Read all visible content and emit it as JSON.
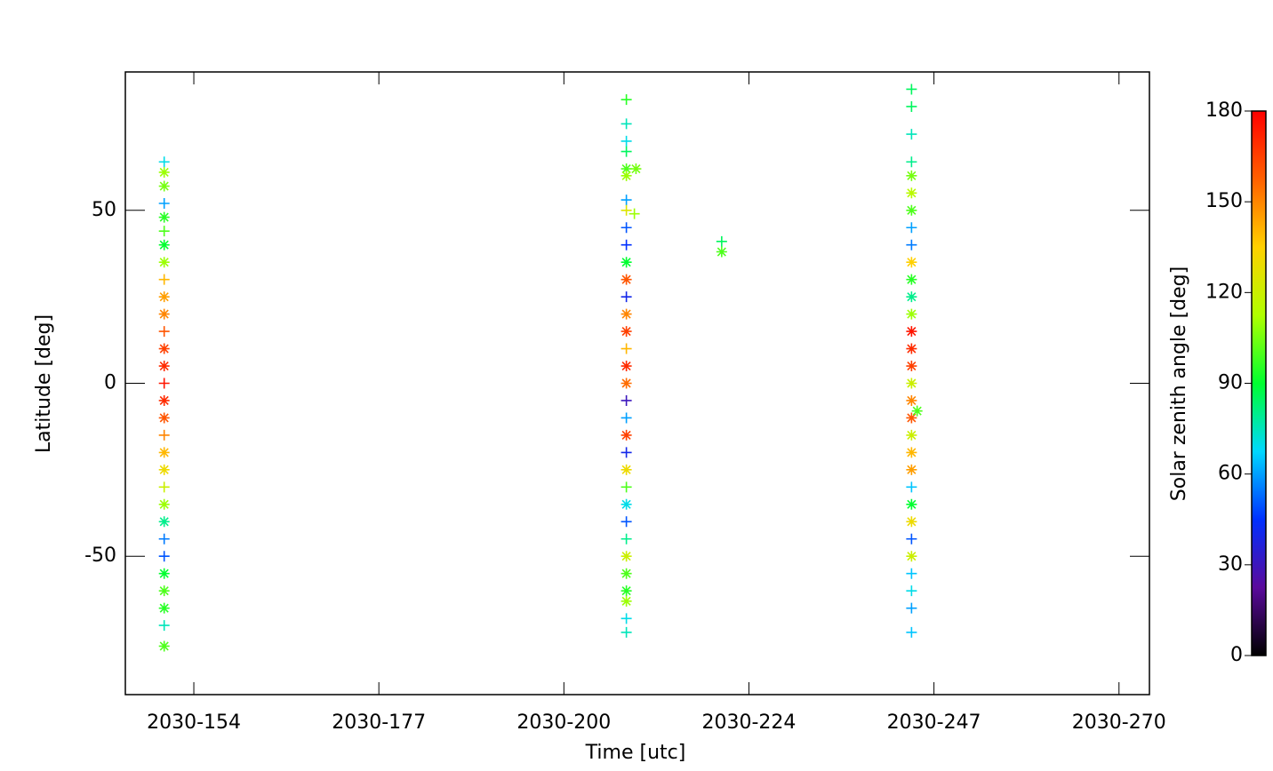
{
  "chart_data": {
    "type": "scatter",
    "xlabel": "Time [utc]",
    "ylabel": "Latitude [deg]",
    "clabel": "Solar zenith angle [deg]",
    "xlim": [
      145.75,
      273.6
    ],
    "ylim": [
      -90,
      90
    ],
    "xticks": [
      {
        "value": 154.3,
        "label": "2030-154"
      },
      {
        "value": 177.4,
        "label": "2030-177"
      },
      {
        "value": 200.5,
        "label": "2030-200"
      },
      {
        "value": 223.6,
        "label": "2030-224"
      },
      {
        "value": 246.7,
        "label": "2030-247"
      },
      {
        "value": 269.8,
        "label": "2030-270"
      }
    ],
    "yticks": [
      -50,
      0,
      50
    ],
    "clim": [
      0,
      180
    ],
    "cticks": [
      0,
      30,
      60,
      90,
      120,
      150,
      180
    ],
    "colormap": [
      "#000000",
      "#5a0a9c",
      "#0030ff",
      "#00d8ff",
      "#00ff30",
      "#b0ff00",
      "#ffd000",
      "#ff6000",
      "#ff0000"
    ],
    "points": {
      "x": [
        150.6,
        150.6,
        150.6,
        150.6,
        150.6,
        150.6,
        150.6,
        150.6,
        150.6,
        150.6,
        150.6,
        150.6,
        150.6,
        150.6,
        150.6,
        150.6,
        150.6,
        150.6,
        150.6,
        150.6,
        150.6,
        150.6,
        150.6,
        150.6,
        150.6,
        150.6,
        150.6,
        150.6,
        150.6,
        150.6,
        208.3,
        208.3,
        208.3,
        208.3,
        208.3,
        208.3,
        208.3,
        208.3,
        208.3,
        208.3,
        208.3,
        208.3,
        208.3,
        208.3,
        208.3,
        208.3,
        208.3,
        208.3,
        208.3,
        208.3,
        208.3,
        208.3,
        208.3,
        208.3,
        208.3,
        208.3,
        208.3,
        208.3,
        208.3,
        208.3,
        208.3,
        208.3,
        208.3,
        209.5,
        209.3,
        220.2,
        220.2,
        243.9,
        243.9,
        243.9,
        243.9,
        243.9,
        243.9,
        243.9,
        243.9,
        243.9,
        243.9,
        243.9,
        243.9,
        243.9,
        243.9,
        243.9,
        243.9,
        243.9,
        243.9,
        243.9,
        243.9,
        243.9,
        243.9,
        243.9,
        243.9,
        243.9,
        243.9,
        243.9,
        243.9,
        243.9,
        243.9,
        243.9,
        244.6
      ],
      "y": [
        64,
        61,
        57,
        52,
        48,
        44,
        40,
        35,
        30,
        25,
        20,
        15,
        10,
        5,
        0,
        -5,
        -10,
        -15,
        -20,
        -25,
        -30,
        -35,
        -40,
        -45,
        -50,
        -55,
        -60,
        -65,
        -70,
        -76,
        82,
        75,
        70,
        67,
        62,
        60,
        53,
        50,
        45,
        40,
        35,
        30,
        25,
        20,
        15,
        10,
        5,
        0,
        -5,
        -10,
        -15,
        -20,
        -25,
        -30,
        -35,
        -40,
        -45,
        -50,
        -55,
        -60,
        -63,
        -68,
        -72,
        62,
        49,
        41,
        38,
        85,
        80,
        72,
        64,
        60,
        55,
        50,
        45,
        40,
        35,
        30,
        25,
        20,
        15,
        10,
        5,
        0,
        -5,
        -10,
        -15,
        -20,
        -25,
        -30,
        -35,
        -40,
        -45,
        -50,
        -55,
        -60,
        -65,
        -72,
        -8
      ],
      "c": [
        70,
        110,
        105,
        60,
        95,
        100,
        90,
        110,
        140,
        145,
        150,
        160,
        165,
        170,
        175,
        170,
        160,
        150,
        140,
        130,
        120,
        110,
        80,
        55,
        50,
        90,
        100,
        95,
        75,
        100,
        95,
        75,
        70,
        85,
        100,
        110,
        60,
        125,
        50,
        45,
        90,
        160,
        40,
        150,
        165,
        140,
        170,
        155,
        30,
        60,
        165,
        40,
        130,
        100,
        70,
        50,
        80,
        120,
        100,
        95,
        110,
        70,
        75,
        105,
        110,
        85,
        100,
        85,
        85,
        75,
        80,
        105,
        115,
        100,
        60,
        55,
        135,
        95,
        80,
        110,
        175,
        170,
        165,
        120,
        150,
        160,
        120,
        140,
        145,
        65,
        90,
        130,
        50,
        120,
        65,
        70,
        60,
        65,
        100
      ],
      "marker": [
        "+",
        "*",
        "*",
        "+",
        "*",
        "+",
        "*",
        "*",
        "+",
        "*",
        "*",
        "+",
        "*",
        "*",
        "+",
        "*",
        "*",
        "+",
        "*",
        "*",
        "+",
        "*",
        "*",
        "+",
        "+",
        "*",
        "*",
        "*",
        "+",
        "*",
        "+",
        "+",
        "+",
        "+",
        "*",
        "*",
        "+",
        "+",
        "+",
        "+",
        "*",
        "*",
        "+",
        "*",
        "*",
        "+",
        "*",
        "*",
        "+",
        "+",
        "*",
        "+",
        "*",
        "+",
        "*",
        "+",
        "+",
        "*",
        "*",
        "*",
        "*",
        "+",
        "+",
        "*",
        "+",
        "+",
        "*",
        "+",
        "+",
        "+",
        "+",
        "*",
        "*",
        "*",
        "+",
        "+",
        "*",
        "*",
        "*",
        "*",
        "*",
        "*",
        "*",
        "*",
        "*",
        "*",
        "*",
        "*",
        "*",
        "+",
        "*",
        "*",
        "+",
        "*",
        "+",
        "+",
        "+",
        "+",
        "*"
      ]
    }
  }
}
